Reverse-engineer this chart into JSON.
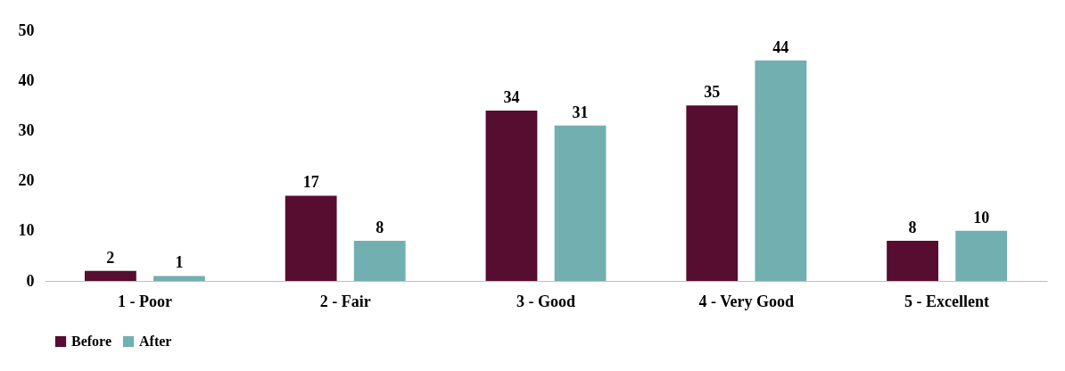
{
  "chart_data": {
    "type": "bar",
    "categories": [
      "1 - Poor",
      "2 - Fair",
      "3 - Good",
      "4 - Very Good",
      "5 - Excellent"
    ],
    "series": [
      {
        "name": "Before",
        "color": "#560d2f",
        "values": [
          2,
          17,
          34,
          35,
          8
        ]
      },
      {
        "name": "After",
        "color": "#72afb0",
        "values": [
          1,
          8,
          31,
          44,
          10
        ]
      }
    ],
    "ylim": [
      0,
      50
    ],
    "yticks": [
      0,
      10,
      20,
      30,
      40,
      50
    ],
    "grid": false,
    "legend": "bottom",
    "data_labels": true
  }
}
